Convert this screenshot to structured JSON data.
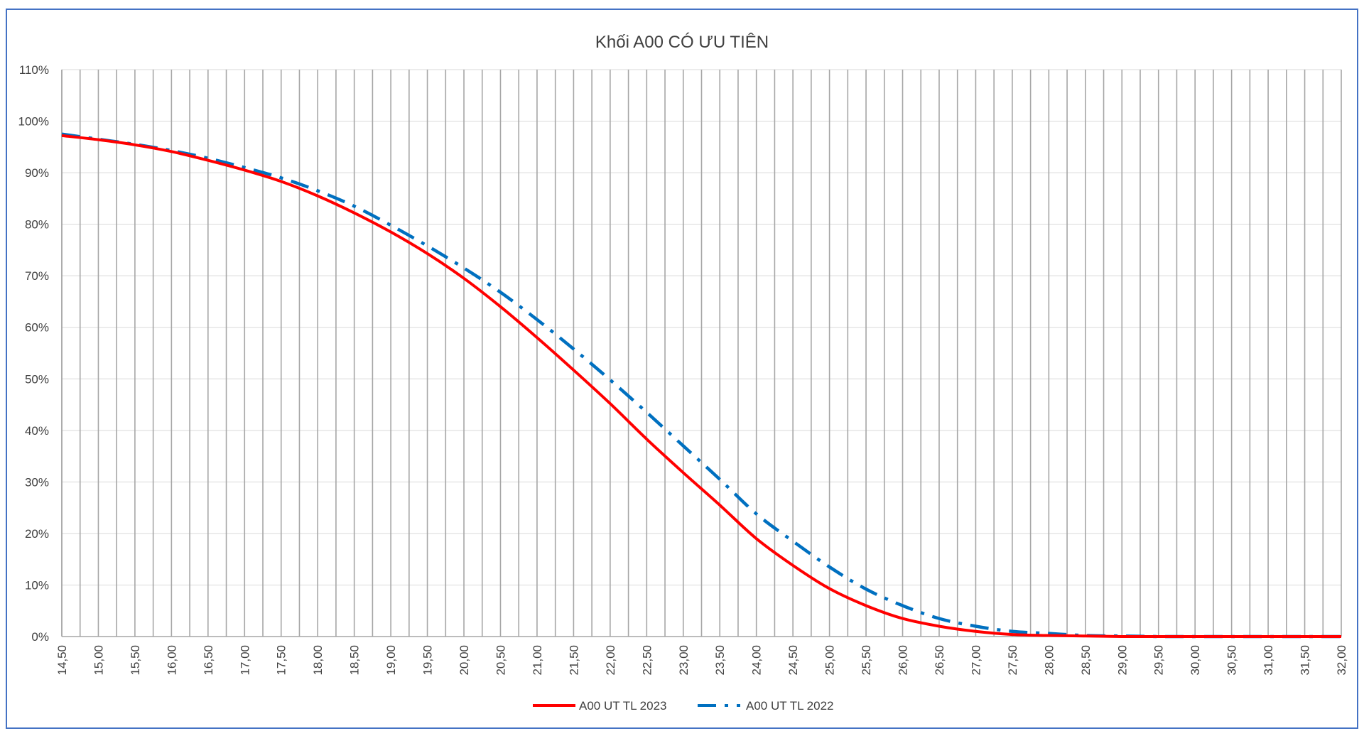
{
  "chart_data": {
    "type": "line",
    "title": "Khối A00 CÓ ƯU TIÊN",
    "xlabel": "",
    "ylabel": "",
    "x_range": [
      14.5,
      32.0
    ],
    "x_step": 0.25,
    "x_tick_labels": [
      "14,50",
      "15,00",
      "15,50",
      "16,00",
      "16,50",
      "17,00",
      "17,50",
      "18,00",
      "18,50",
      "19,00",
      "19,50",
      "20,00",
      "20,50",
      "21,00",
      "21,50",
      "22,00",
      "22,50",
      "23,00",
      "23,50",
      "24,00",
      "24,50",
      "25,00",
      "25,50",
      "26,00",
      "26,50",
      "27,00",
      "27,50",
      "28,00",
      "28,50",
      "29,00",
      "29,50",
      "30,00",
      "30,50",
      "31,00",
      "31,50",
      "32,00"
    ],
    "ylim": [
      0,
      110
    ],
    "y_tick_labels": [
      "0%",
      "10%",
      "20%",
      "30%",
      "40%",
      "50%",
      "60%",
      "70%",
      "80%",
      "90%",
      "100%",
      "110%"
    ],
    "grid": "vertical",
    "legend_position": "bottom",
    "series": [
      {
        "name": "A00 UT TL 2023",
        "color": "#ff0000",
        "style": "solid",
        "x": [
          14.5,
          15.0,
          15.5,
          16.0,
          16.5,
          17.0,
          17.5,
          18.0,
          18.5,
          19.0,
          19.5,
          20.0,
          20.5,
          21.0,
          21.5,
          22.0,
          22.5,
          23.0,
          23.5,
          24.0,
          24.5,
          25.0,
          25.5,
          26.0,
          26.5,
          27.0,
          27.5,
          28.0,
          28.5,
          29.0,
          29.5,
          30.0,
          30.5,
          31.0,
          31.5,
          32.0
        ],
        "values": [
          97.2,
          96.4,
          95.4,
          94.1,
          92.4,
          90.5,
          88.3,
          85.5,
          82.2,
          78.5,
          74.3,
          69.5,
          64.0,
          58.0,
          51.7,
          45.2,
          38.3,
          31.8,
          25.5,
          19.0,
          13.8,
          9.3,
          6.0,
          3.5,
          2.0,
          1.0,
          0.4,
          0.2,
          0.1,
          0,
          0,
          0,
          0,
          0,
          0,
          0
        ]
      },
      {
        "name": "A00 UT TL 2022",
        "color": "#0070c0",
        "style": "dash-dot",
        "x": [
          14.5,
          15.0,
          15.5,
          16.0,
          16.5,
          17.0,
          17.5,
          18.0,
          18.5,
          19.0,
          19.5,
          20.0,
          20.5,
          21.0,
          21.5,
          22.0,
          22.5,
          23.0,
          23.5,
          24.0,
          24.5,
          25.0,
          25.5,
          26.0,
          26.5,
          27.0,
          27.5,
          28.0,
          28.5,
          29.0,
          29.5,
          30.0,
          30.5,
          31.0,
          31.5,
          32.0
        ],
        "values": [
          97.5,
          96.5,
          95.5,
          94.3,
          92.8,
          91.0,
          89.0,
          86.5,
          83.5,
          79.8,
          75.8,
          71.5,
          66.8,
          61.5,
          55.8,
          49.8,
          43.5,
          37.0,
          30.5,
          23.8,
          18.5,
          13.5,
          9.2,
          6.0,
          3.5,
          2.0,
          1.0,
          0.6,
          0.2,
          0.1,
          0,
          0,
          0,
          0,
          0,
          0
        ]
      }
    ]
  }
}
